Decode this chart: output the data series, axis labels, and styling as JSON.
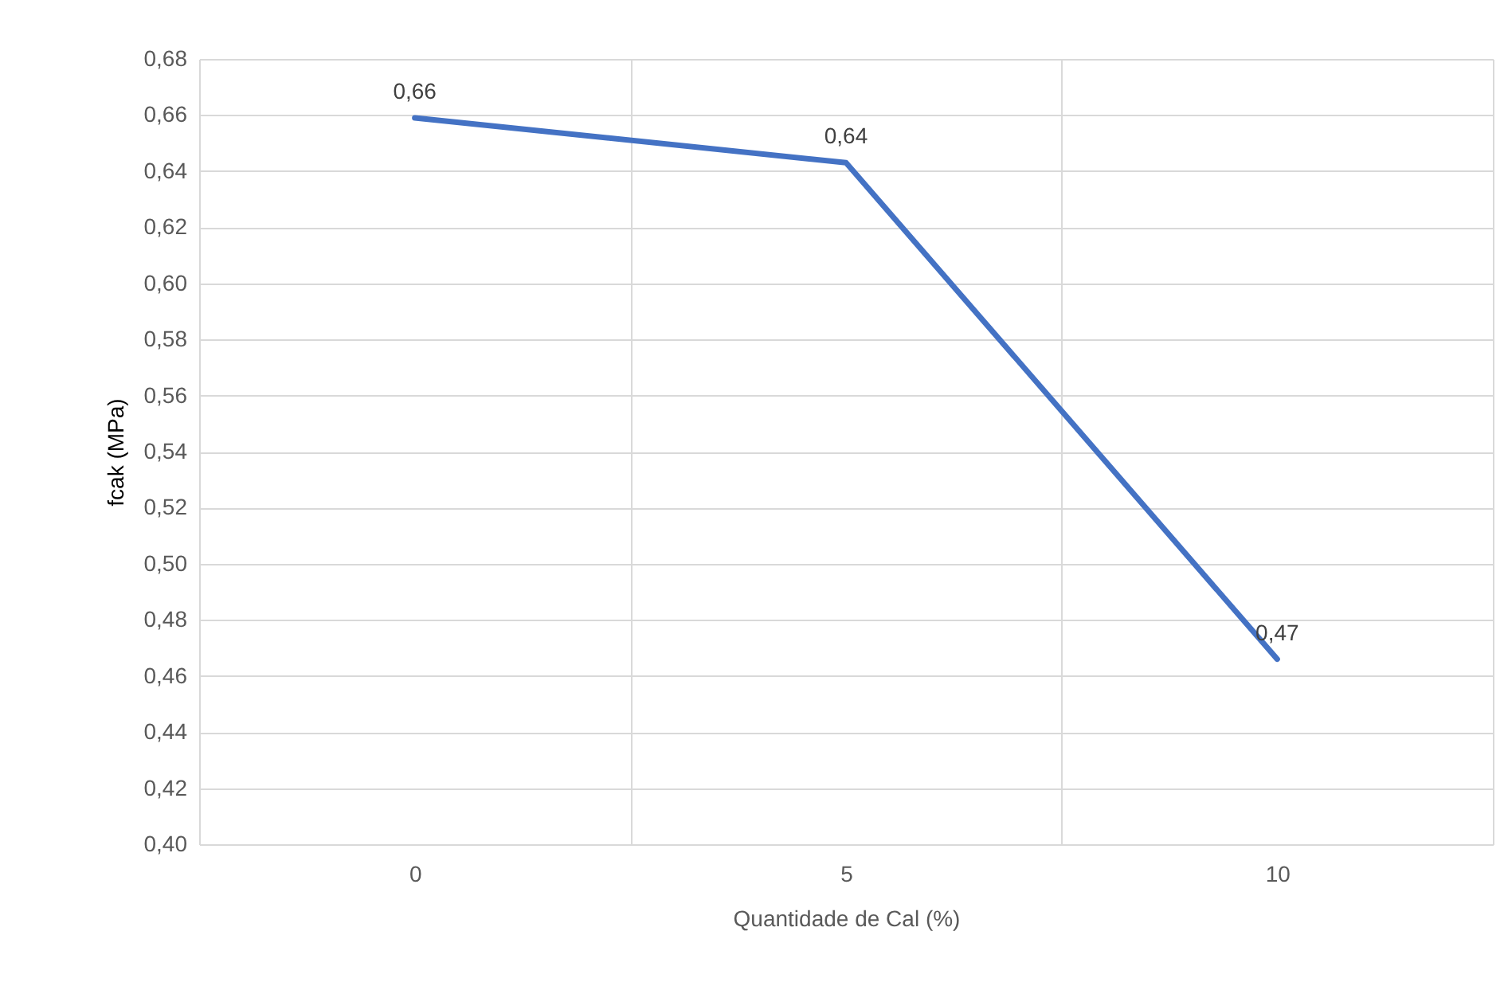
{
  "chart_data": {
    "type": "line",
    "xlabel": "Quantidade de Cal (%)",
    "ylabel": "fcak (MPa)",
    "categories": [
      "0",
      "5",
      "10"
    ],
    "series": [
      {
        "color": "#4472c4",
        "values": [
          0.659,
          0.643,
          0.466
        ],
        "value_labels": [
          "0,66",
          "0,64",
          "0,47"
        ]
      }
    ],
    "ylim": [
      0.4,
      0.68
    ],
    "yticks": [
      {
        "value": 0.4,
        "label": "0,40"
      },
      {
        "value": 0.42,
        "label": "0,42"
      },
      {
        "value": 0.44,
        "label": "0,44"
      },
      {
        "value": 0.46,
        "label": "0,46"
      },
      {
        "value": 0.48,
        "label": "0,48"
      },
      {
        "value": 0.5,
        "label": "0,50"
      },
      {
        "value": 0.52,
        "label": "0,52"
      },
      {
        "value": 0.54,
        "label": "0,54"
      },
      {
        "value": 0.56,
        "label": "0,56"
      },
      {
        "value": 0.58,
        "label": "0,58"
      },
      {
        "value": 0.6,
        "label": "0,60"
      },
      {
        "value": 0.62,
        "label": "0,62"
      },
      {
        "value": 0.64,
        "label": "0,64"
      },
      {
        "value": 0.66,
        "label": "0,66"
      },
      {
        "value": 0.68,
        "label": "0,68"
      }
    ],
    "grid": true,
    "marker": "none",
    "line_style": "solid"
  }
}
